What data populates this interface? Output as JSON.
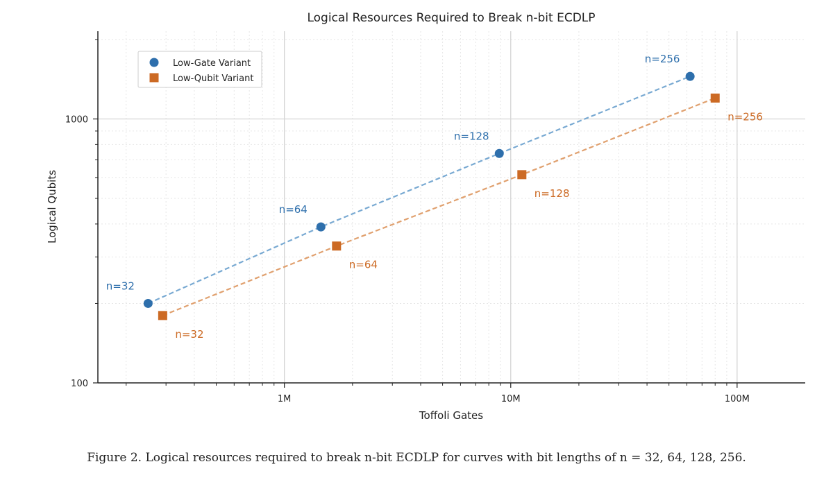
{
  "chart_data": {
    "type": "scatter",
    "title": "Logical Resources Required to Break n-bit ECDLP",
    "xlabel": "Toffoli Gates",
    "ylabel": "Logical Qubits",
    "xscale": "log",
    "yscale": "log",
    "xlim": [
      150000,
      200000000
    ],
    "ylim": [
      100,
      2150
    ],
    "x_ticks": [
      {
        "value": 1000000,
        "label": "1M"
      },
      {
        "value": 10000000,
        "label": "10M"
      },
      {
        "value": 100000000,
        "label": "100M"
      }
    ],
    "y_ticks": [
      {
        "value": 100,
        "label": "100"
      },
      {
        "value": 1000,
        "label": "1000"
      }
    ],
    "grid": true,
    "legend_position": "top-left",
    "series": [
      {
        "name": "Low-Gate Variant",
        "color": "#2e6fac",
        "marker": "circle",
        "line": "dashed",
        "points": [
          {
            "x": 250000,
            "y": 200,
            "label": "n=32"
          },
          {
            "x": 1450000,
            "y": 390,
            "label": "n=64"
          },
          {
            "x": 8900000,
            "y": 740,
            "label": "n=128"
          },
          {
            "x": 62000000,
            "y": 1450,
            "label": "n=256"
          }
        ]
      },
      {
        "name": "Low-Qubit Variant",
        "color": "#cc6a24",
        "marker": "square",
        "line": "dashed",
        "points": [
          {
            "x": 290000,
            "y": 180,
            "label": "n=32"
          },
          {
            "x": 1700000,
            "y": 330,
            "label": "n=64"
          },
          {
            "x": 11200000,
            "y": 615,
            "label": "n=128"
          },
          {
            "x": 80000000,
            "y": 1200,
            "label": "n=256"
          }
        ]
      }
    ]
  },
  "caption": "Figure 2. Logical resources required to break n-bit ECDLP for curves with bit lengths of n = 32, 64, 128, 256."
}
